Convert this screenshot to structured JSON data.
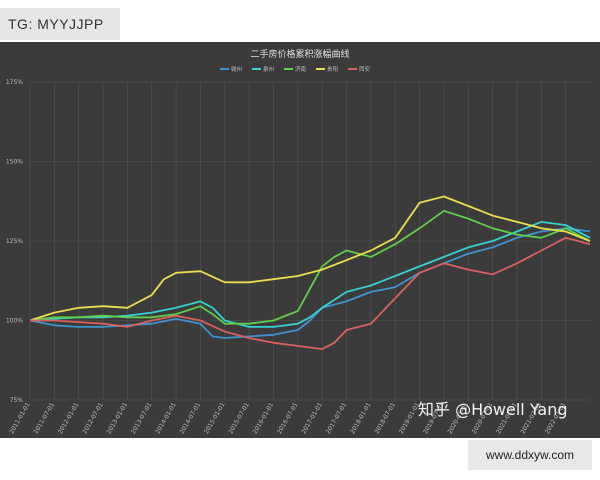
{
  "badge": {
    "tg_label": "TG: MYYJJPP"
  },
  "footer": {
    "site_label": "www.ddxyw.com"
  },
  "watermark": {
    "text": "知乎 @Howell Yang"
  },
  "colors": {
    "background": "#3b3b3b",
    "grid": "#555555",
    "text": "#bfbfbf",
    "ganzhou": "#3f93ce",
    "quanzhou": "#34d1d0",
    "jinan": "#5fcf4a",
    "guiyang": "#e8de4a",
    "xian": "#d9605e"
  },
  "chart_data": {
    "type": "line",
    "title": "二手房价格累积涨幅曲线",
    "xlabel": "",
    "ylabel": "",
    "ylim": [
      75,
      175
    ],
    "yticks": [
      "75%",
      "100%",
      "125%",
      "150%",
      "175%"
    ],
    "xlim": [
      "2011-01",
      "2022-07"
    ],
    "xticks": [
      "2011-01-01",
      "2011-07-01",
      "2012-01-01",
      "2012-07-01",
      "2013-01-01",
      "2013-07-01",
      "2014-01-01",
      "2014-07-01",
      "2015-01-01",
      "2015-07-01",
      "2016-01-01",
      "2016-07-01",
      "2017-01-01",
      "2017-07-01",
      "2018-01-01",
      "2018-07-01",
      "2019-01-01",
      "2019-07-01",
      "2020-01-01",
      "2020-07-01",
      "2021-01-01",
      "2021-07-01",
      "2022-01-01"
    ],
    "grid": true,
    "legend_position": "top-center",
    "series": [
      {
        "name": "赣州",
        "color_key": "ganzhou",
        "points": [
          [
            "2011-01",
            100
          ],
          [
            "2011-07",
            98.5
          ],
          [
            "2012-01",
            98
          ],
          [
            "2012-07",
            98
          ],
          [
            "2013-01",
            98.5
          ],
          [
            "2013-07",
            99
          ],
          [
            "2014-01",
            100.5
          ],
          [
            "2014-07",
            99
          ],
          [
            "2014-10",
            95
          ],
          [
            "2015-01",
            94.5
          ],
          [
            "2015-07",
            95
          ],
          [
            "2016-01",
            95.5
          ],
          [
            "2016-07",
            97
          ],
          [
            "2016-10",
            100
          ],
          [
            "2017-01",
            104
          ],
          [
            "2017-07",
            106
          ],
          [
            "2018-01",
            109
          ],
          [
            "2018-07",
            110.5
          ],
          [
            "2019-01",
            115
          ],
          [
            "2019-07",
            118
          ],
          [
            "2020-01",
            121
          ],
          [
            "2020-07",
            123
          ],
          [
            "2021-01",
            126
          ],
          [
            "2021-07",
            128
          ],
          [
            "2022-01",
            129
          ],
          [
            "2022-07",
            128
          ]
        ]
      },
      {
        "name": "泉州",
        "color_key": "quanzhou",
        "points": [
          [
            "2011-01",
            100
          ],
          [
            "2011-07",
            100.5
          ],
          [
            "2012-01",
            101
          ],
          [
            "2012-07",
            101
          ],
          [
            "2013-01",
            101.5
          ],
          [
            "2013-07",
            102.5
          ],
          [
            "2014-01",
            104
          ],
          [
            "2014-07",
            106
          ],
          [
            "2014-10",
            104
          ],
          [
            "2015-01",
            100
          ],
          [
            "2015-07",
            98
          ],
          [
            "2016-01",
            98
          ],
          [
            "2016-07",
            99
          ],
          [
            "2016-10",
            101
          ],
          [
            "2017-01",
            104
          ],
          [
            "2017-07",
            109
          ],
          [
            "2018-01",
            111
          ],
          [
            "2018-07",
            114
          ],
          [
            "2019-01",
            117
          ],
          [
            "2019-07",
            120
          ],
          [
            "2020-01",
            123
          ],
          [
            "2020-07",
            125
          ],
          [
            "2021-01",
            128
          ],
          [
            "2021-07",
            131
          ],
          [
            "2022-01",
            130
          ],
          [
            "2022-07",
            126
          ]
        ]
      },
      {
        "name": "济南",
        "color_key": "jinan",
        "points": [
          [
            "2011-01",
            100
          ],
          [
            "2011-07",
            101
          ],
          [
            "2012-01",
            101
          ],
          [
            "2012-07",
            101.5
          ],
          [
            "2013-01",
            101
          ],
          [
            "2013-07",
            101
          ],
          [
            "2014-01",
            102
          ],
          [
            "2014-07",
            104.5
          ],
          [
            "2014-10",
            102
          ],
          [
            "2015-01",
            99
          ],
          [
            "2015-07",
            99
          ],
          [
            "2016-01",
            100
          ],
          [
            "2016-07",
            103
          ],
          [
            "2016-10",
            110
          ],
          [
            "2017-01",
            117
          ],
          [
            "2017-04",
            120
          ],
          [
            "2017-07",
            122
          ],
          [
            "2018-01",
            120
          ],
          [
            "2018-07",
            124
          ],
          [
            "2019-01",
            129
          ],
          [
            "2019-07",
            134.5
          ],
          [
            "2020-01",
            132
          ],
          [
            "2020-07",
            129
          ],
          [
            "2021-01",
            127
          ],
          [
            "2021-07",
            126
          ],
          [
            "2022-01",
            129
          ],
          [
            "2022-07",
            125
          ]
        ]
      },
      {
        "name": "贵阳",
        "color_key": "guiyang",
        "points": [
          [
            "2011-01",
            100
          ],
          [
            "2011-07",
            102.5
          ],
          [
            "2012-01",
            104
          ],
          [
            "2012-07",
            104.5
          ],
          [
            "2013-01",
            104
          ],
          [
            "2013-07",
            108
          ],
          [
            "2013-10",
            113
          ],
          [
            "2014-01",
            115
          ],
          [
            "2014-07",
            115.5
          ],
          [
            "2015-01",
            112
          ],
          [
            "2015-07",
            112
          ],
          [
            "2016-01",
            113
          ],
          [
            "2016-07",
            114
          ],
          [
            "2017-01",
            116
          ],
          [
            "2017-07",
            119
          ],
          [
            "2018-01",
            122
          ],
          [
            "2018-07",
            126
          ],
          [
            "2019-01",
            137
          ],
          [
            "2019-07",
            139
          ],
          [
            "2020-01",
            136
          ],
          [
            "2020-07",
            133
          ],
          [
            "2021-01",
            131
          ],
          [
            "2021-07",
            129
          ],
          [
            "2022-01",
            128
          ],
          [
            "2022-07",
            125
          ]
        ]
      },
      {
        "name": "西安",
        "color_key": "xian",
        "points": [
          [
            "2011-01",
            100
          ],
          [
            "2011-07",
            100
          ],
          [
            "2012-01",
            99.5
          ],
          [
            "2012-07",
            99
          ],
          [
            "2013-01",
            98
          ],
          [
            "2013-07",
            100
          ],
          [
            "2014-01",
            101.5
          ],
          [
            "2014-07",
            100
          ],
          [
            "2015-01",
            96.5
          ],
          [
            "2015-07",
            94.5
          ],
          [
            "2016-01",
            93
          ],
          [
            "2016-07",
            92
          ],
          [
            "2017-01",
            91
          ],
          [
            "2017-04",
            93
          ],
          [
            "2017-07",
            97
          ],
          [
            "2018-01",
            99
          ],
          [
            "2018-07",
            107
          ],
          [
            "2019-01",
            115
          ],
          [
            "2019-07",
            118
          ],
          [
            "2020-01",
            116
          ],
          [
            "2020-07",
            114.5
          ],
          [
            "2021-01",
            118
          ],
          [
            "2021-07",
            122
          ],
          [
            "2022-01",
            126
          ],
          [
            "2022-07",
            124
          ]
        ]
      }
    ]
  }
}
